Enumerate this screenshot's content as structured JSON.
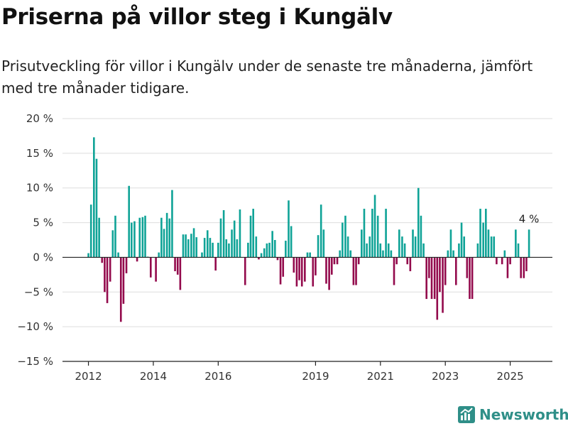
{
  "title": "Priserna på villor steg i Kungälv",
  "subtitle": "Prisutveckling för villor i Kungälv under de senaste tre månaderna, jämfört med tre månader tidigare.",
  "brand": {
    "name": "Newsworthy",
    "icon": "newsworthy-logo-icon",
    "color": "#2f8f88"
  },
  "colors": {
    "positive": "#0fa397",
    "negative": "#930a4c",
    "grid": "#dddddd",
    "zero_line": "#222222"
  },
  "chart_data": {
    "type": "bar",
    "title": "",
    "xlabel": "",
    "ylabel": "",
    "ylim": [
      -15,
      20
    ],
    "xlim": [
      2011.2,
      2026.3
    ],
    "y_ticks": [
      {
        "value": 20,
        "label": "20 %"
      },
      {
        "value": 15,
        "label": "15 %"
      },
      {
        "value": 10,
        "label": "10 %"
      },
      {
        "value": 5,
        "label": "5 %"
      },
      {
        "value": 0,
        "label": "0 %"
      },
      {
        "value": -5,
        "label": "−5 %"
      },
      {
        "value": -10,
        "label": "−10 %"
      },
      {
        "value": -15,
        "label": "−15 %"
      }
    ],
    "x_ticks": [
      {
        "value": 2012,
        "label": "2012"
      },
      {
        "value": 2014,
        "label": "2014"
      },
      {
        "value": 2016,
        "label": "2016"
      },
      {
        "value": 2019,
        "label": "2019"
      },
      {
        "value": 2021,
        "label": "2021"
      },
      {
        "value": 2023,
        "label": "2023"
      },
      {
        "value": 2025,
        "label": "2025"
      }
    ],
    "grid": true,
    "series": [
      {
        "points": [
          [
            2012.0,
            0.6
          ],
          [
            2012.08,
            7.6
          ],
          [
            2012.17,
            17.3
          ],
          [
            2012.25,
            14.2
          ],
          [
            2012.33,
            5.7
          ],
          [
            2012.42,
            -0.8
          ],
          [
            2012.5,
            -5.0
          ],
          [
            2012.58,
            -6.6
          ],
          [
            2012.67,
            -3.5
          ],
          [
            2012.75,
            3.9
          ],
          [
            2012.83,
            6.0
          ],
          [
            2012.92,
            0.7
          ],
          [
            2013.0,
            -9.3
          ],
          [
            2013.08,
            -6.7
          ],
          [
            2013.17,
            -2.3
          ],
          [
            2013.25,
            10.3
          ],
          [
            2013.33,
            5.0
          ],
          [
            2013.42,
            5.2
          ],
          [
            2013.5,
            -0.6
          ],
          [
            2013.58,
            5.7
          ],
          [
            2013.67,
            5.8
          ],
          [
            2013.75,
            6.0
          ],
          [
            2013.83,
            0.1
          ],
          [
            2013.92,
            -2.9
          ],
          [
            2014.0,
            0.0
          ],
          [
            2014.08,
            -3.5
          ],
          [
            2014.17,
            0.7
          ],
          [
            2014.25,
            5.7
          ],
          [
            2014.33,
            4.1
          ],
          [
            2014.42,
            6.4
          ],
          [
            2014.5,
            5.6
          ],
          [
            2014.58,
            9.7
          ],
          [
            2014.67,
            -2.0
          ],
          [
            2014.75,
            -2.5
          ],
          [
            2014.83,
            -4.7
          ],
          [
            2014.92,
            3.3
          ],
          [
            2015.0,
            3.3
          ],
          [
            2015.08,
            2.6
          ],
          [
            2015.17,
            3.4
          ],
          [
            2015.25,
            4.2
          ],
          [
            2015.33,
            2.9
          ],
          [
            2015.42,
            0.0
          ],
          [
            2015.5,
            0.7
          ],
          [
            2015.58,
            2.8
          ],
          [
            2015.67,
            3.9
          ],
          [
            2015.75,
            2.8
          ],
          [
            2015.83,
            2.1
          ],
          [
            2015.92,
            -1.9
          ],
          [
            2016.0,
            2.1
          ],
          [
            2016.08,
            5.6
          ],
          [
            2016.17,
            6.8
          ],
          [
            2016.25,
            2.6
          ],
          [
            2016.33,
            2.0
          ],
          [
            2016.42,
            4.0
          ],
          [
            2016.5,
            5.3
          ],
          [
            2016.58,
            2.6
          ],
          [
            2016.67,
            6.9
          ],
          [
            2016.75,
            0.0
          ],
          [
            2016.83,
            -4.0
          ],
          [
            2016.92,
            2.1
          ],
          [
            2017.0,
            6.0
          ],
          [
            2017.08,
            7.0
          ],
          [
            2017.17,
            3.0
          ],
          [
            2017.25,
            -0.3
          ],
          [
            2017.33,
            0.6
          ],
          [
            2017.42,
            1.3
          ],
          [
            2017.5,
            2.0
          ],
          [
            2017.58,
            2.1
          ],
          [
            2017.67,
            3.8
          ],
          [
            2017.75,
            2.5
          ],
          [
            2017.83,
            -0.4
          ],
          [
            2017.92,
            -3.9
          ],
          [
            2018.0,
            -2.8
          ],
          [
            2018.08,
            2.4
          ],
          [
            2018.17,
            8.2
          ],
          [
            2018.25,
            4.5
          ],
          [
            2018.33,
            -2.2
          ],
          [
            2018.42,
            -4.2
          ],
          [
            2018.5,
            -3.3
          ],
          [
            2018.58,
            -4.2
          ],
          [
            2018.67,
            -3.5
          ],
          [
            2018.75,
            0.7
          ],
          [
            2018.83,
            0.7
          ],
          [
            2018.92,
            -4.2
          ],
          [
            2019.0,
            -2.6
          ],
          [
            2019.08,
            3.2
          ],
          [
            2019.17,
            7.6
          ],
          [
            2019.25,
            4.0
          ],
          [
            2019.33,
            -3.8
          ],
          [
            2019.42,
            -4.7
          ],
          [
            2019.5,
            -2.5
          ],
          [
            2019.58,
            -1.0
          ],
          [
            2019.67,
            -1.0
          ],
          [
            2019.75,
            1.0
          ],
          [
            2019.83,
            5.0
          ],
          [
            2019.92,
            6.0
          ],
          [
            2020.0,
            3.0
          ],
          [
            2020.08,
            1.0
          ],
          [
            2020.17,
            -4.0
          ],
          [
            2020.25,
            -4.0
          ],
          [
            2020.33,
            -1.0
          ],
          [
            2020.42,
            4.0
          ],
          [
            2020.5,
            7.0
          ],
          [
            2020.58,
            2.0
          ],
          [
            2020.67,
            3.0
          ],
          [
            2020.75,
            7.0
          ],
          [
            2020.83,
            9.0
          ],
          [
            2020.92,
            6.0
          ],
          [
            2021.0,
            2.0
          ],
          [
            2021.08,
            1.0
          ],
          [
            2021.17,
            7.0
          ],
          [
            2021.25,
            2.0
          ],
          [
            2021.33,
            1.0
          ],
          [
            2021.42,
            -4.0
          ],
          [
            2021.5,
            -1.0
          ],
          [
            2021.58,
            4.0
          ],
          [
            2021.67,
            3.0
          ],
          [
            2021.75,
            2.0
          ],
          [
            2021.83,
            -1.0
          ],
          [
            2021.92,
            -2.0
          ],
          [
            2022.0,
            4.0
          ],
          [
            2022.08,
            3.0
          ],
          [
            2022.17,
            10.0
          ],
          [
            2022.25,
            6.0
          ],
          [
            2022.33,
            2.0
          ],
          [
            2022.42,
            -6.0
          ],
          [
            2022.5,
            -3.0
          ],
          [
            2022.58,
            -6.0
          ],
          [
            2022.67,
            -6.0
          ],
          [
            2022.75,
            -9.0
          ],
          [
            2022.83,
            -5.0
          ],
          [
            2022.92,
            -8.0
          ],
          [
            2023.0,
            -4.0
          ],
          [
            2023.08,
            1.0
          ],
          [
            2023.17,
            4.0
          ],
          [
            2023.25,
            1.0
          ],
          [
            2023.33,
            -4.0
          ],
          [
            2023.42,
            2.0
          ],
          [
            2023.5,
            5.0
          ],
          [
            2023.58,
            3.0
          ],
          [
            2023.67,
            -3.0
          ],
          [
            2023.75,
            -6.0
          ],
          [
            2023.83,
            -6.0
          ],
          [
            2023.92,
            0.0
          ],
          [
            2024.0,
            2.0
          ],
          [
            2024.08,
            7.0
          ],
          [
            2024.17,
            5.0
          ],
          [
            2024.25,
            7.0
          ],
          [
            2024.33,
            4.0
          ],
          [
            2024.42,
            3.0
          ],
          [
            2024.5,
            3.0
          ],
          [
            2024.58,
            -1.0
          ],
          [
            2024.67,
            0.0
          ],
          [
            2024.75,
            -1.0
          ],
          [
            2024.83,
            1.0
          ],
          [
            2024.92,
            -3.0
          ],
          [
            2025.0,
            -1.0
          ],
          [
            2025.08,
            0.0
          ],
          [
            2025.17,
            4.0
          ],
          [
            2025.25,
            2.0
          ],
          [
            2025.33,
            -3.0
          ],
          [
            2025.42,
            -3.0
          ],
          [
            2025.5,
            -2.0
          ],
          [
            2025.58,
            4.0
          ]
        ]
      }
    ],
    "annotations": [
      {
        "x": 2025.58,
        "y": 4.0,
        "text": "4 %"
      }
    ]
  }
}
